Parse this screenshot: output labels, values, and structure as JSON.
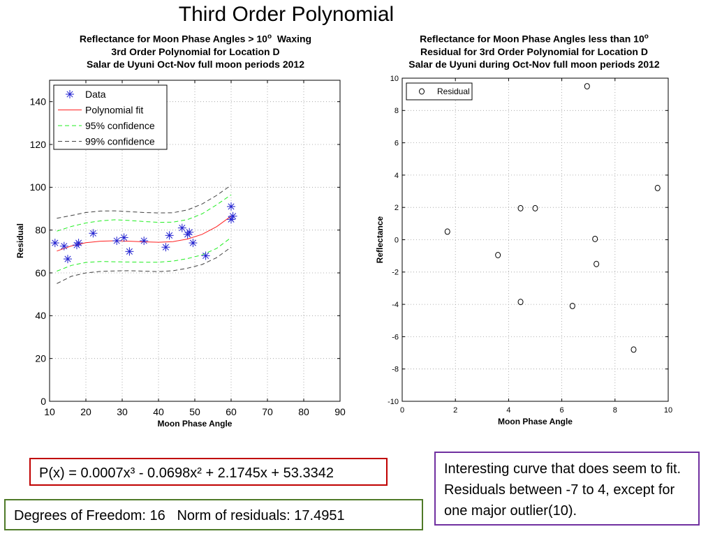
{
  "slide": {
    "title": "Third Order Polynomial",
    "equation": "P(x) = 0.0007x³ - 0.0698x² + 2.1745x + 53.3342",
    "stats": "Degrees of Freedom: 16   Norm of residuals: 17.4951",
    "note": "Interesting curve that does seem to fit. Residuals between -7 to 4, except for one major outlier(10)."
  },
  "chart_data": [
    {
      "type": "scatter",
      "title_lines": [
        "Reflectance for Moon Phase Angles > 10",
        "3rd Order Polynomial for Location D",
        "Salar de Uyuni Oct-Nov full moon periods 2012"
      ],
      "title_suffix": "Waxing",
      "title_sup": "o",
      "xlabel": "Moon Phase Angle",
      "ylabel": "Residual",
      "xlim": [
        10,
        90
      ],
      "ylim": [
        0,
        150
      ],
      "xticks": [
        10,
        20,
        30,
        40,
        50,
        60,
        70,
        80,
        90
      ],
      "yticks": [
        0,
        20,
        40,
        60,
        80,
        100,
        120,
        140
      ],
      "grid": true,
      "legend_position": "top-left",
      "legend": [
        "Data",
        "Polynomial fit",
        "95% confidence",
        "99% confidence"
      ],
      "colors": {
        "data": "#2020d0",
        "fit": "#ff2020",
        "conf95": "#20ee20",
        "conf99": "#404040"
      },
      "series": [
        {
          "name": "Data",
          "x": [
            11.5,
            14,
            15,
            17.5,
            18,
            22,
            28.5,
            30.5,
            32,
            36,
            42,
            43,
            46.5,
            48,
            48.5,
            49.5,
            53,
            60,
            60,
            60.5
          ],
          "y": [
            74,
            72.5,
            66.5,
            73,
            74,
            78.5,
            75,
            76.5,
            70,
            75,
            72,
            77.5,
            81,
            78,
            79,
            74,
            68,
            91,
            85,
            86.5
          ]
        },
        {
          "name": "Polynomial fit",
          "x": [
            12,
            16,
            20,
            24,
            28,
            32,
            36,
            40,
            44,
            48,
            52,
            56,
            60
          ],
          "y": [
            70.2,
            72.6,
            74.1,
            74.8,
            75.0,
            74.8,
            74.5,
            74.3,
            74.6,
            75.8,
            78.0,
            81.6,
            86.5
          ]
        },
        {
          "name": "95% confidence",
          "x": [
            12,
            16,
            20,
            24,
            28,
            32,
            36,
            40,
            44,
            48,
            52,
            56,
            60
          ],
          "y_upper": [
            79.5,
            81.7,
            83.3,
            84.3,
            84.8,
            84.5,
            84.0,
            83.6,
            83.7,
            84.9,
            87.6,
            91.8,
            96.5
          ],
          "y_lower": [
            60.8,
            63.5,
            64.9,
            65.3,
            65.2,
            65.1,
            65.0,
            65.0,
            65.5,
            66.7,
            68.4,
            71.4,
            76.5
          ]
        },
        {
          "name": "99% confidence",
          "x": [
            12,
            16,
            20,
            24,
            28,
            32,
            36,
            40,
            44,
            48,
            52,
            56,
            60
          ],
          "y_upper": [
            85.5,
            86.8,
            88.2,
            88.9,
            89.0,
            88.6,
            88.2,
            88.0,
            88.1,
            89.4,
            92.2,
            96.2,
            101.0
          ],
          "y_lower": [
            55.0,
            58.4,
            60.0,
            60.7,
            60.9,
            61.0,
            60.8,
            60.6,
            61.0,
            62.2,
            63.9,
            67.1,
            72.0
          ]
        }
      ]
    },
    {
      "type": "scatter",
      "title_lines": [
        "Reflectance for Moon Phase Angles less than 10",
        "Residual for 3rd Order Polynomial for Location D",
        "Salar de Uyuni during Oct-Nov full moon periods 2012"
      ],
      "title_sup": "o",
      "xlabel": "Moon Phase Angle",
      "ylabel": "Reflectance",
      "xlim": [
        0,
        10
      ],
      "ylim": [
        -10,
        10
      ],
      "xticks": [
        0,
        2,
        4,
        6,
        8,
        10
      ],
      "yticks": [
        -10,
        -8,
        -6,
        -4,
        -2,
        0,
        2,
        4,
        6,
        8,
        10
      ],
      "grid": true,
      "legend_position": "top-left",
      "legend": [
        "Residual"
      ],
      "colors": {
        "marker": "#000000"
      },
      "series": [
        {
          "name": "Residual",
          "x": [
            1.7,
            3.6,
            4.45,
            4.45,
            5.0,
            6.4,
            6.95,
            7.25,
            7.3,
            8.7,
            9.6
          ],
          "y": [
            0.5,
            -0.95,
            1.95,
            -3.85,
            1.95,
            -4.1,
            9.5,
            0.05,
            -1.5,
            -6.8,
            3.2
          ]
        }
      ]
    }
  ]
}
